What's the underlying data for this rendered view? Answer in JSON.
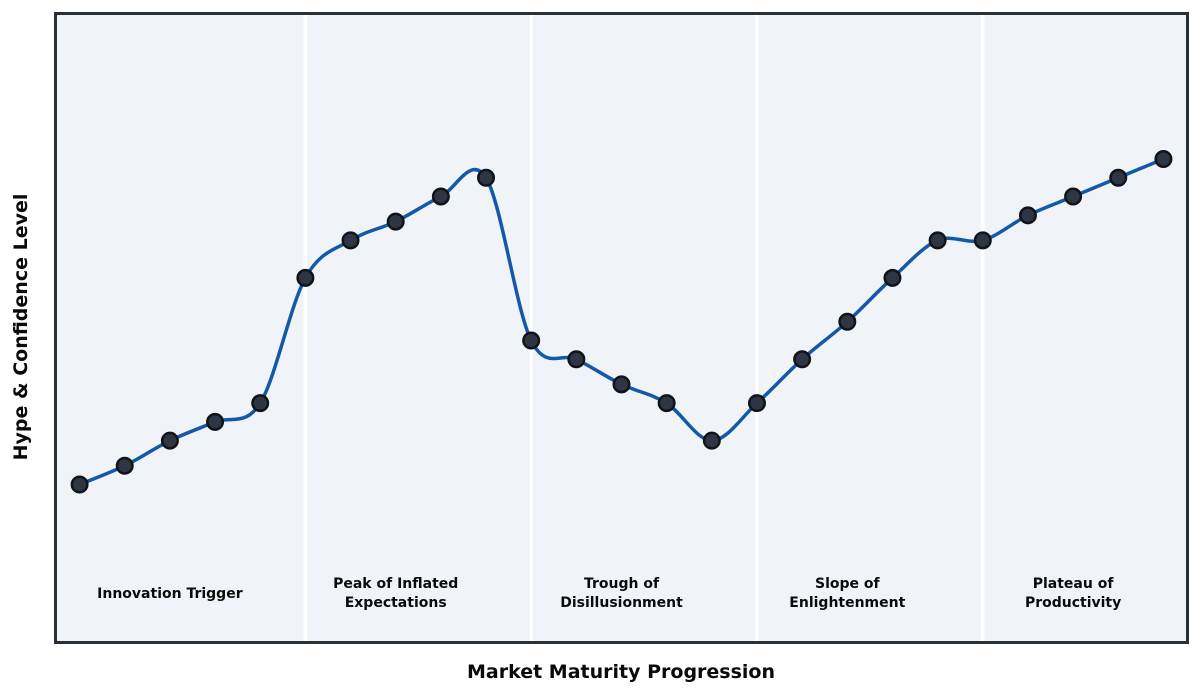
{
  "figure": {
    "background_color": "#ffffff",
    "plot_background_color": "#f0f4f8",
    "border_color": "#2b2f36"
  },
  "chart_data": {
    "type": "line",
    "title": "",
    "xlabel": "Market Maturity Progression",
    "ylabel": "Hype & Confidence Level",
    "x": [
      0,
      1,
      2,
      3,
      4,
      5,
      6,
      7,
      8,
      9,
      10,
      11,
      12,
      13,
      14,
      15,
      16,
      17,
      18,
      19,
      20,
      21,
      22,
      23,
      24
    ],
    "values": [
      25,
      28,
      32,
      35,
      38,
      58,
      64,
      67,
      71,
      74,
      48,
      45,
      41,
      38,
      32,
      38,
      45,
      51,
      58,
      64,
      64,
      68,
      71,
      74,
      77
    ],
    "xlim": [
      -0.5,
      24.5
    ],
    "ylim": [
      0,
      100
    ],
    "grid": false,
    "axis_ticks": "none",
    "line_color": "#1459a8",
    "line_width": 3.5,
    "line_style": "smooth-spline",
    "marker": {
      "shape": "circle",
      "radius": 7.75,
      "face_color": "#2e3643",
      "edge_color": "#101318",
      "edge_width": 2.5
    },
    "phase_divider_color": "#ffffff",
    "phase_dividers_x": [
      5,
      10,
      15,
      20
    ],
    "phases": [
      {
        "label": "Innovation Trigger",
        "label_x": 2
      },
      {
        "label": "Peak of Inflated\nExpectations",
        "label_x": 7
      },
      {
        "label": "Trough of\nDisillusionment",
        "label_x": 12
      },
      {
        "label": "Slope of\nEnlightenment",
        "label_x": 17
      },
      {
        "label": "Plateau of\nProductivity",
        "label_x": 22
      }
    ]
  }
}
